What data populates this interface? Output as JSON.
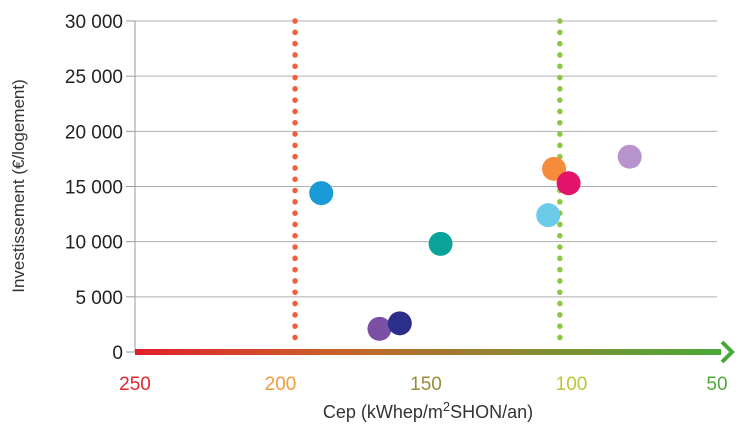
{
  "chart_data": {
    "type": "scatter",
    "title": "",
    "xlabel_prefix": "Cep (kWhep/m",
    "xlabel_sup": "2",
    "xlabel_suffix": "SHON/an)",
    "ylabel": "Investissement (€/logement)",
    "xlim": [
      250,
      50
    ],
    "ylim": [
      0,
      30000
    ],
    "x_reversed": true,
    "grid": "horizontal",
    "y_ticks": [
      {
        "value": 0,
        "label": "0"
      },
      {
        "value": 5000,
        "label": "5 000"
      },
      {
        "value": 10000,
        "label": "10 000"
      },
      {
        "value": 15000,
        "label": "15 000"
      },
      {
        "value": 20000,
        "label": "20 000"
      },
      {
        "value": 25000,
        "label": "25 000"
      },
      {
        "value": 30000,
        "label": "30 000"
      }
    ],
    "x_ticks": [
      {
        "value": 250,
        "label": "250",
        "color": "#e0282e"
      },
      {
        "value": 200,
        "label": "200",
        "color": "#f39a3b"
      },
      {
        "value": 150,
        "label": "150",
        "color": "#9a8a3a"
      },
      {
        "value": 100,
        "label": "100",
        "color": "#b9c83a"
      },
      {
        "value": 50,
        "label": "50",
        "color": "#4daa3a"
      }
    ],
    "axis_gradient": [
      "#e0202a",
      "#c9602a",
      "#8a8a32",
      "#4aa83a"
    ],
    "reference_lines": [
      {
        "x": 195,
        "color": "#f0603c"
      },
      {
        "x": 104,
        "color": "#8dc63f"
      }
    ],
    "points": [
      {
        "x": 186,
        "y": 14400,
        "color": "#1a9ad6"
      },
      {
        "x": 166,
        "y": 2100,
        "color": "#7b4fa3"
      },
      {
        "x": 159,
        "y": 2600,
        "color": "#2b2f8a"
      },
      {
        "x": 145,
        "y": 9800,
        "color": "#0aa39a"
      },
      {
        "x": 108,
        "y": 12400,
        "color": "#6ccbe8"
      },
      {
        "x": 106,
        "y": 16600,
        "color": "#f68b3c"
      },
      {
        "x": 101,
        "y": 15300,
        "color": "#e4136a"
      },
      {
        "x": 80,
        "y": 17700,
        "color": "#b894cc"
      }
    ]
  }
}
